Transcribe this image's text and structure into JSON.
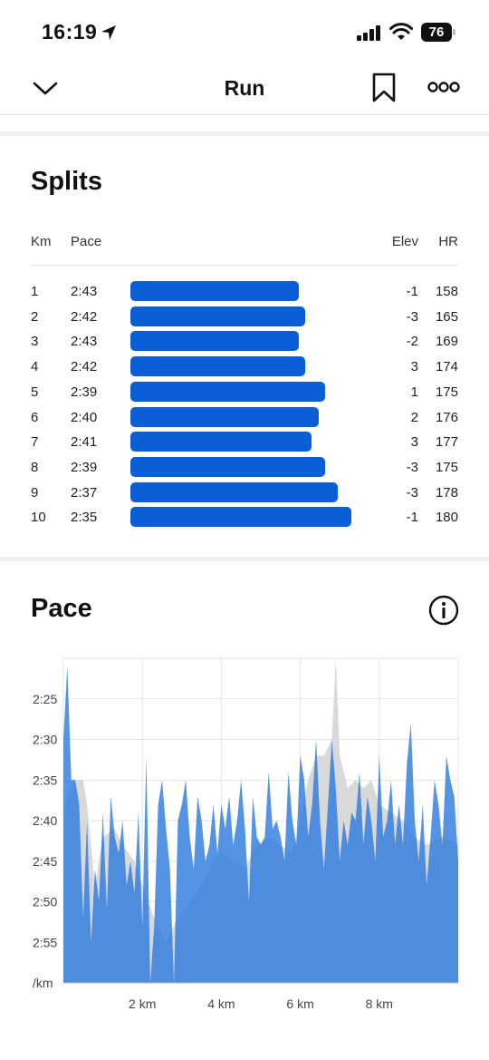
{
  "status_bar": {
    "time": "16:19",
    "battery": "76"
  },
  "navbar": {
    "title": "Run"
  },
  "splits": {
    "title": "Splits",
    "headers": {
      "km": "Km",
      "pace": "Pace",
      "elev": "Elev",
      "hr": "HR"
    },
    "rows": [
      {
        "km": "1",
        "pace": "2:43",
        "elev": "-1",
        "hr": "158",
        "pace_seconds": 163
      },
      {
        "km": "2",
        "pace": "2:42",
        "elev": "-3",
        "hr": "165",
        "pace_seconds": 162
      },
      {
        "km": "3",
        "pace": "2:43",
        "elev": "-2",
        "hr": "169",
        "pace_seconds": 163
      },
      {
        "km": "4",
        "pace": "2:42",
        "elev": "3",
        "hr": "174",
        "pace_seconds": 162
      },
      {
        "km": "5",
        "pace": "2:39",
        "elev": "1",
        "hr": "175",
        "pace_seconds": 159
      },
      {
        "km": "6",
        "pace": "2:40",
        "elev": "2",
        "hr": "176",
        "pace_seconds": 160
      },
      {
        "km": "7",
        "pace": "2:41",
        "elev": "3",
        "hr": "177",
        "pace_seconds": 161
      },
      {
        "km": "8",
        "pace": "2:39",
        "elev": "-3",
        "hr": "175",
        "pace_seconds": 159
      },
      {
        "km": "9",
        "pace": "2:37",
        "elev": "-3",
        "hr": "178",
        "pace_seconds": 157
      },
      {
        "km": "10",
        "pace": "2:35",
        "elev": "-1",
        "hr": "180",
        "pace_seconds": 155
      }
    ]
  },
  "pace_section": {
    "title": "Pace"
  },
  "colors": {
    "bar": "#0a5fd6",
    "pace_fill": "#3f7dc4",
    "pace_line": "#2f7ddf",
    "elevation_fill": "#d9d9d9"
  },
  "chart_data": {
    "type": "area",
    "x_unit": "km",
    "xlim": [
      0,
      10
    ],
    "y_unit": "/km",
    "ylim_seconds": [
      140,
      180
    ],
    "y_inverted": true,
    "x_ticks": [
      {
        "value": 2,
        "label": "2 km"
      },
      {
        "value": 4,
        "label": "4 km"
      },
      {
        "value": 6,
        "label": "6 km"
      },
      {
        "value": 8,
        "label": "8 km"
      }
    ],
    "y_ticks": [
      {
        "value": 145,
        "label": "2:25"
      },
      {
        "value": 150,
        "label": "2:30"
      },
      {
        "value": 155,
        "label": "2:35"
      },
      {
        "value": 160,
        "label": "2:40"
      },
      {
        "value": 165,
        "label": "2:45"
      },
      {
        "value": 170,
        "label": "2:50"
      },
      {
        "value": 175,
        "label": "2:55"
      },
      {
        "value": 180,
        "label": "/km"
      }
    ],
    "grid": true,
    "pace_series": {
      "x": [
        0,
        0.1,
        0.2,
        0.3,
        0.4,
        0.5,
        0.6,
        0.7,
        0.8,
        0.9,
        1.0,
        1.1,
        1.2,
        1.3,
        1.4,
        1.5,
        1.6,
        1.7,
        1.8,
        1.9,
        2.0,
        2.1,
        2.2,
        2.3,
        2.4,
        2.5,
        2.6,
        2.7,
        2.8,
        2.9,
        3.0,
        3.1,
        3.2,
        3.3,
        3.4,
        3.5,
        3.6,
        3.7,
        3.8,
        3.9,
        4.0,
        4.1,
        4.2,
        4.3,
        4.4,
        4.5,
        4.6,
        4.7,
        4.8,
        4.9,
        5.0,
        5.1,
        5.2,
        5.3,
        5.4,
        5.5,
        5.6,
        5.7,
        5.8,
        5.9,
        6.0,
        6.1,
        6.2,
        6.3,
        6.4,
        6.5,
        6.6,
        6.7,
        6.8,
        6.9,
        7.0,
        7.1,
        7.2,
        7.3,
        7.4,
        7.5,
        7.6,
        7.7,
        7.8,
        7.9,
        8.0,
        8.1,
        8.2,
        8.3,
        8.4,
        8.5,
        8.6,
        8.7,
        8.8,
        8.9,
        9.0,
        9.1,
        9.2,
        9.3,
        9.4,
        9.5,
        9.6,
        9.7,
        9.8,
        9.9,
        10.0
      ],
      "y": [
        150,
        141,
        155,
        155,
        158,
        172,
        160,
        175,
        166,
        170,
        159,
        171,
        157,
        162,
        164,
        160,
        168,
        165,
        169,
        159,
        173,
        152,
        180,
        173,
        158,
        155,
        161,
        166,
        180,
        160,
        158,
        155,
        162,
        166,
        157,
        160,
        165,
        163,
        158,
        164,
        158,
        161,
        157,
        163,
        160,
        155,
        161,
        170,
        157,
        162,
        163,
        162,
        154,
        161,
        160,
        162,
        165,
        154,
        160,
        163,
        152,
        155,
        162,
        158,
        150,
        160,
        166,
        158,
        150,
        156,
        165,
        160,
        163,
        159,
        160,
        154,
        163,
        157,
        160,
        165,
        152,
        162,
        160,
        155,
        163,
        158,
        163,
        153,
        148,
        160,
        165,
        158,
        168,
        162,
        155,
        158,
        163,
        152,
        155,
        157,
        165
      ]
    },
    "elevation_series": {
      "x": [
        0,
        0.1,
        0.3,
        0.5,
        0.6,
        0.8,
        1.0,
        1.3,
        1.5,
        1.8,
        2.0,
        2.3,
        2.6,
        2.9,
        3.2,
        3.5,
        3.8,
        4.0,
        4.3,
        4.6,
        4.9,
        5.2,
        5.5,
        5.8,
        6.0,
        6.2,
        6.4,
        6.6,
        6.8,
        6.9,
        7.0,
        7.2,
        7.4,
        7.6,
        7.8,
        8.0,
        8.3,
        8.6,
        8.9,
        9.2,
        9.6,
        10.0
      ],
      "y": [
        160,
        157,
        155,
        155,
        158,
        168,
        162,
        161,
        163,
        165,
        168,
        172,
        175,
        172,
        170,
        168,
        165,
        164,
        165,
        166,
        163,
        162,
        163,
        164,
        160,
        155,
        152,
        152,
        150,
        140,
        152,
        156,
        155,
        156,
        155,
        158,
        159,
        160,
        162,
        163,
        162,
        163
      ]
    }
  }
}
